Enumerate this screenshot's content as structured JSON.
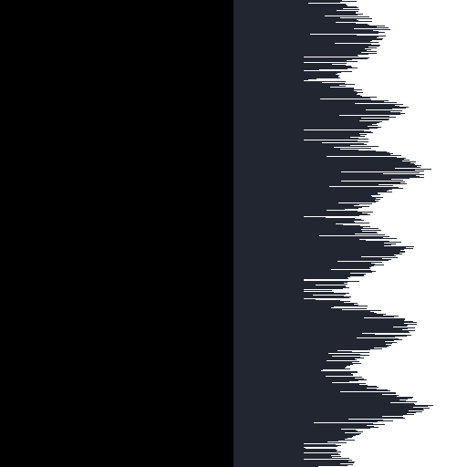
{
  "colors": {
    "left_panel": "#000000",
    "right_panel": "#212630",
    "streaks": "#ffffff"
  },
  "pattern": {
    "description_visible": false,
    "rows": 512,
    "edge_profile": [
      0.5,
      0.52,
      0.55,
      0.62,
      0.66,
      0.6,
      0.58,
      0.52,
      0.48,
      0.46,
      0.5,
      0.58,
      0.72,
      0.7,
      0.62,
      0.56,
      0.54,
      0.62,
      0.74,
      0.82,
      0.8,
      0.72,
      0.64,
      0.58,
      0.56,
      0.54,
      0.6,
      0.68,
      0.74,
      0.7,
      0.62,
      0.56,
      0.5,
      0.46,
      0.48,
      0.56,
      0.7,
      0.78,
      0.74,
      0.66,
      0.58,
      0.52,
      0.5,
      0.52,
      0.6,
      0.72,
      0.82,
      0.76,
      0.64,
      0.54,
      0.48,
      0.44,
      0.46,
      0.5
    ]
  }
}
